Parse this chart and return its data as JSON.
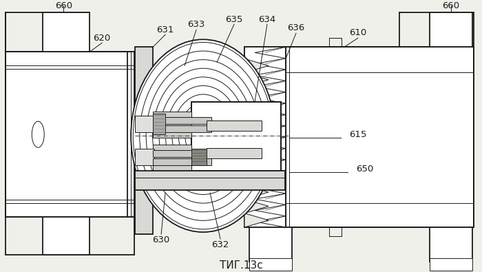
{
  "bg_color": "#f0f0eb",
  "line_color": "#1a1a1a",
  "title": "ΤИГ.13c",
  "title_fontsize": 11,
  "lw_main": 1.3,
  "lw_thin": 0.7,
  "lw_thick": 2.0
}
